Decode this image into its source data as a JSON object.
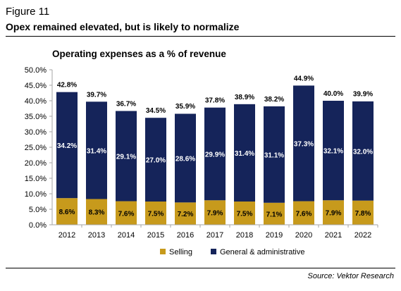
{
  "figure_number": "Figure 11",
  "figure_title": "Opex remained elevated, but is likely to normalize",
  "source": "Source: Vektor Research",
  "colors": {
    "selling": "#C79A1C",
    "general_admin": "#15245A",
    "axis": "#A6A6A6"
  },
  "chart_data": {
    "type": "bar",
    "stacked": true,
    "title": "Operating expenses as a % of revenue",
    "xlabel": "",
    "ylabel": "",
    "ylim": [
      0,
      50
    ],
    "y_ticks": [
      "0.0%",
      "5.0%",
      "10.0%",
      "15.0%",
      "20.0%",
      "25.0%",
      "30.0%",
      "35.0%",
      "40.0%",
      "45.0%",
      "50.0%"
    ],
    "categories": [
      "2012",
      "2013",
      "2014",
      "2015",
      "2016",
      "2017",
      "2018",
      "2019",
      "2020",
      "2021",
      "2022"
    ],
    "series": [
      {
        "name": "Selling",
        "values": [
          8.6,
          8.3,
          7.6,
          7.5,
          7.2,
          7.9,
          7.5,
          7.1,
          7.6,
          7.9,
          7.8
        ],
        "labels": [
          "8.6%",
          "8.3%",
          "7.6%",
          "7.5%",
          "7.2%",
          "7.9%",
          "7.5%",
          "7.1%",
          "7.6%",
          "7.9%",
          "7.8%"
        ]
      },
      {
        "name": "General & administrative",
        "values": [
          34.2,
          31.4,
          29.1,
          27.0,
          28.6,
          29.9,
          31.4,
          31.1,
          37.3,
          32.1,
          32.0
        ],
        "labels": [
          "34.2%",
          "31.4%",
          "29.1%",
          "27.0%",
          "28.6%",
          "29.9%",
          "31.4%",
          "31.1%",
          "37.3%",
          "32.1%",
          "32.0%"
        ]
      }
    ],
    "totals": [
      42.8,
      39.7,
      36.7,
      34.5,
      35.9,
      37.8,
      38.9,
      38.2,
      44.9,
      40.0,
      39.9
    ],
    "total_labels": [
      "42.8%",
      "39.7%",
      "36.7%",
      "34.5%",
      "35.9%",
      "37.8%",
      "38.9%",
      "38.2%",
      "44.9%",
      "40.0%",
      "39.9%"
    ],
    "legend_position": "bottom",
    "grid": false
  }
}
